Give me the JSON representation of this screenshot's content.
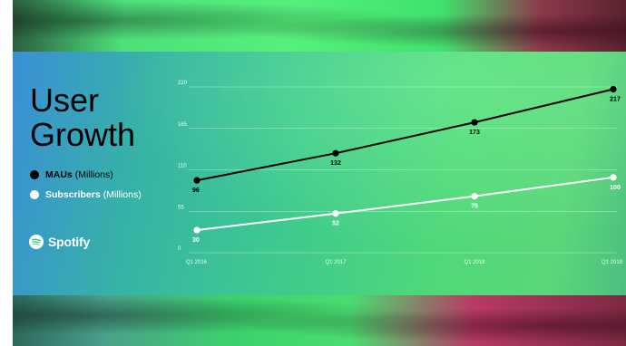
{
  "title": "User Growth",
  "legend": {
    "mau_name": "MAUs",
    "mau_unit": "(Millions)",
    "sub_name": "Subscribers",
    "sub_unit": "(Millions)"
  },
  "logo_text": "Spotify",
  "colors": {
    "mau": "#000000",
    "subscribers": "#ffffff",
    "grid": "#c8f5d6"
  },
  "chart_data": {
    "type": "line",
    "x": [
      "Q1 2016",
      "Q1 2017",
      "Q1 2018",
      "Q1 2019"
    ],
    "ylim": [
      0,
      220
    ],
    "yticks": [
      0,
      55,
      110,
      165,
      220
    ],
    "grid": true,
    "legend_position": "left",
    "series": [
      {
        "name": "MAUs (Millions)",
        "values": [
          96,
          132,
          173,
          217
        ],
        "color": "#000000"
      },
      {
        "name": "Subscribers (Millions)",
        "values": [
          30,
          52,
          75,
          100
        ],
        "color": "#ffffff"
      }
    ]
  }
}
